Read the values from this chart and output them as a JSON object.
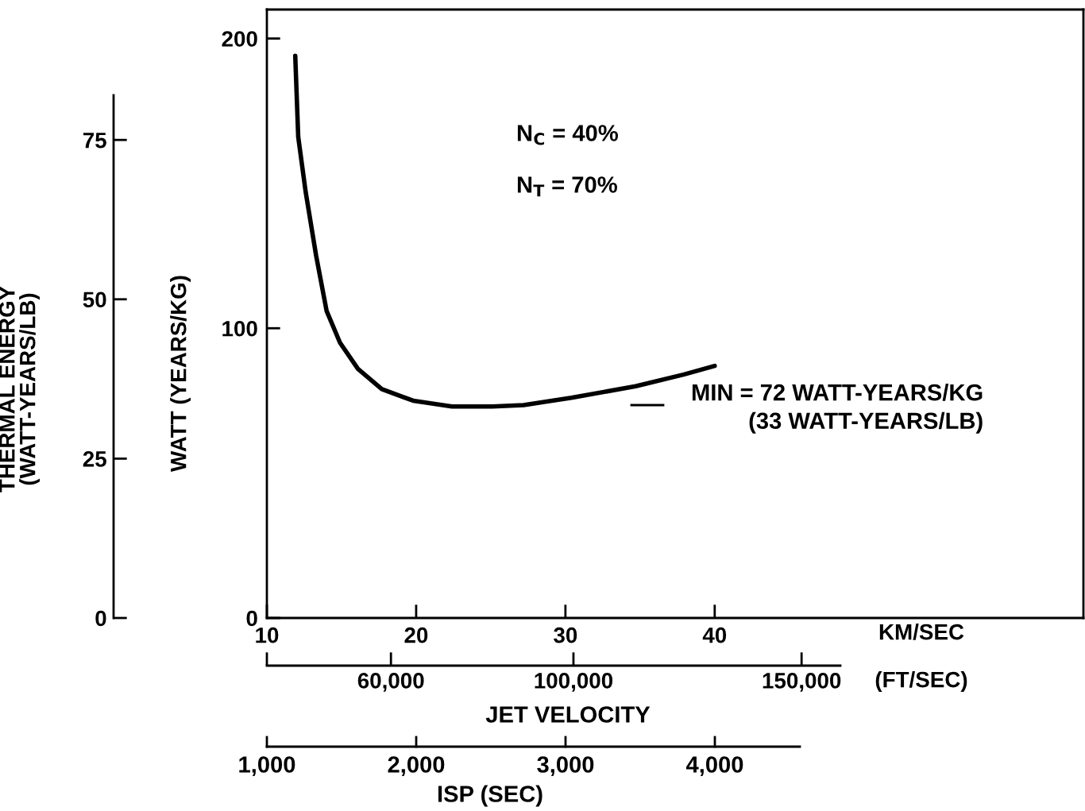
{
  "chart_data": {
    "type": "line",
    "series": [
      {
        "color": "#000000",
        "x": [
          11.9,
          12.1,
          12.6,
          13.3,
          14.0,
          14.9,
          16.1,
          17.7,
          19.8,
          22.4,
          25.1,
          27.2,
          30.4,
          34.7,
          37.9,
          40.0
        ],
        "values": [
          194,
          166,
          147,
          125,
          106,
          95,
          86,
          79,
          75,
          73,
          73,
          73.5,
          76,
          80,
          84,
          87
        ]
      }
    ],
    "line_style": "solid",
    "xlabel": "KM/SEC",
    "xlim": [
      10,
      64.7
    ],
    "xticks": [
      10,
      20,
      30,
      40
    ],
    "ylabel": "WATT (YEARS/KG)",
    "ylim": [
      0,
      210
    ],
    "yticks": [
      0,
      100,
      200
    ],
    "x2label": "(FT/SEC)",
    "x2lim": [
      32808,
      158500
    ],
    "x2ticks": [
      {
        "value": 32808,
        "label": null
      },
      {
        "value": 60000,
        "label": "60,000"
      },
      {
        "value": 100000,
        "label": "100,000"
      },
      {
        "value": 150000,
        "label": "150,000"
      }
    ],
    "y2label": "THERMAL ENERGY\n(WATT-YEARS/LB)",
    "y2lim": [
      0,
      82
    ],
    "y2ticks": [
      0,
      25,
      50,
      75
    ],
    "annotations": [
      "N$_{C}$ = 40%",
      "N$_{T}$ = 70%",
      "MIN = 72 WATT-YEARS/KG\n(33 WATT-YEARS/LB)",
      "JET VELOCITY",
      "1,000",
      "2,000",
      "3,000",
      "4,000",
      "ISP (SEC)"
    ]
  }
}
